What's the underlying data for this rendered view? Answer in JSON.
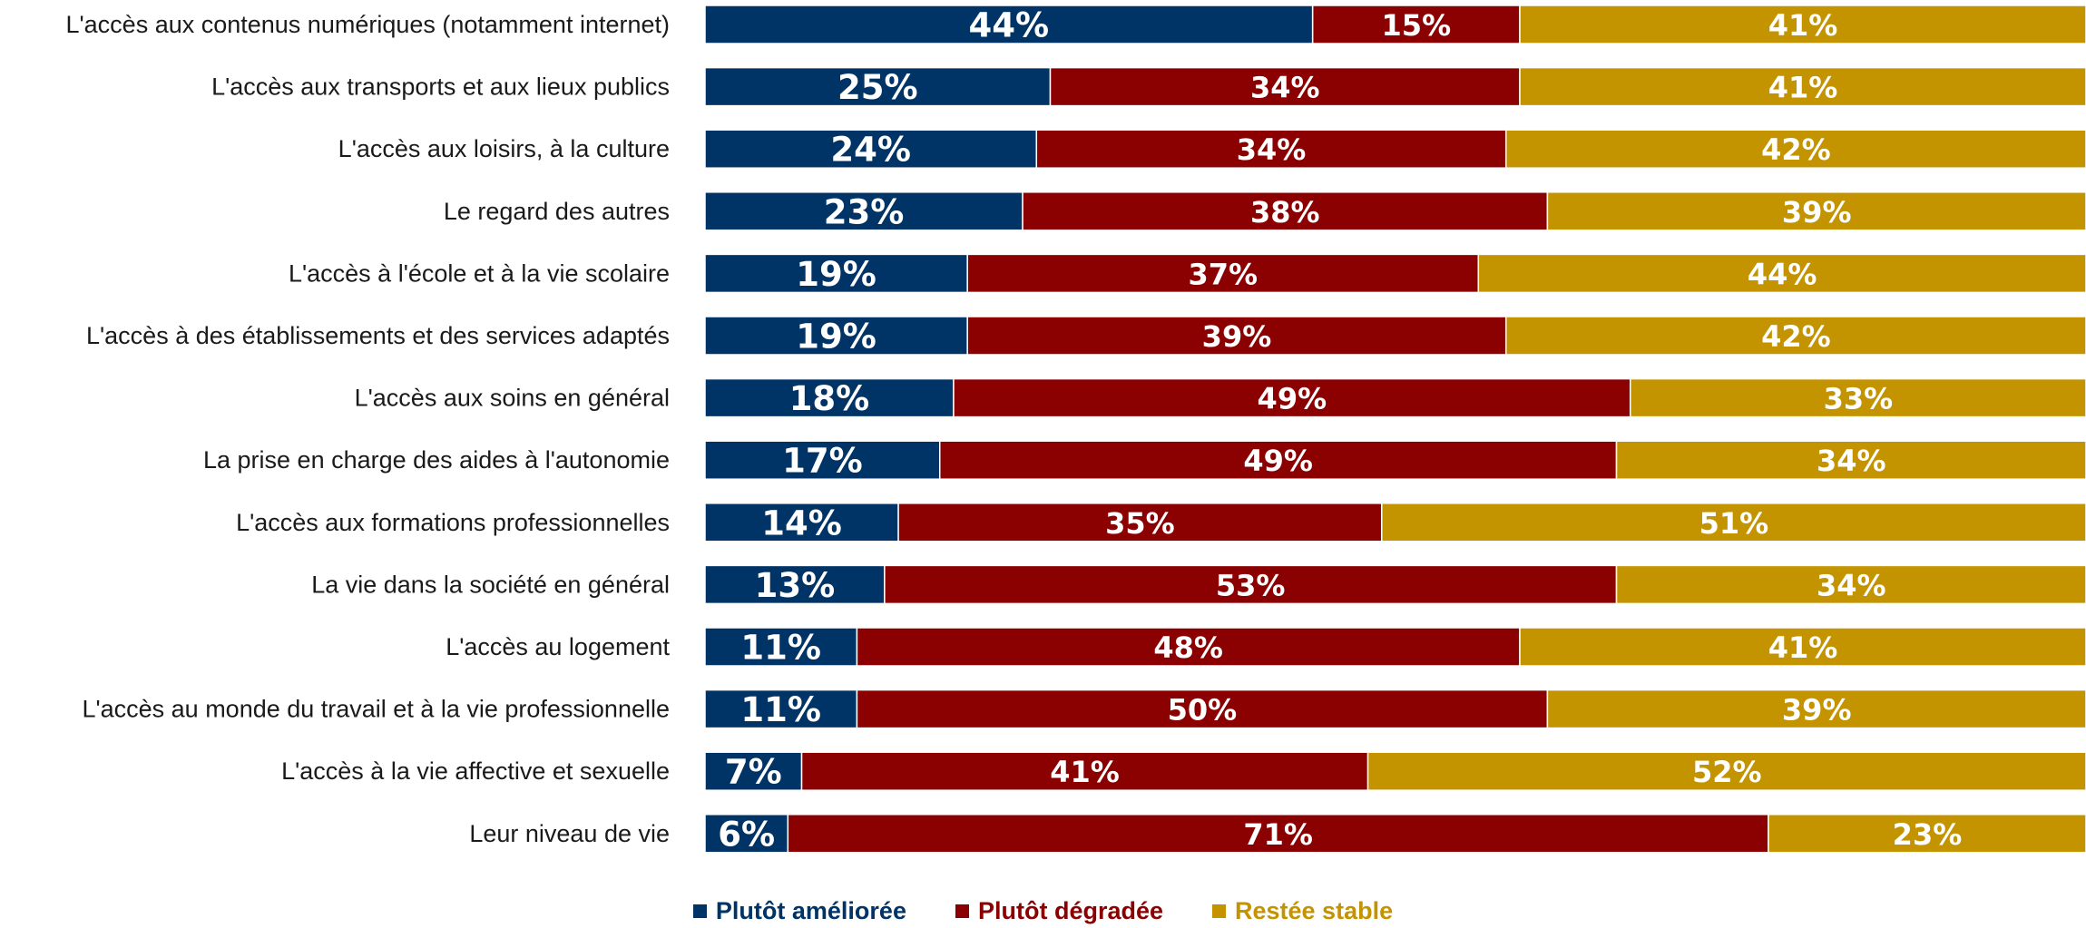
{
  "chart_data": {
    "type": "bar",
    "orientation": "horizontal",
    "stacked": true,
    "title": "",
    "xlabel": "",
    "ylabel": "",
    "xlim": [
      0,
      100
    ],
    "unit": "%",
    "grid": false,
    "legend_position": "bottom-center",
    "categories": [
      "L'accès aux contenus numériques (notamment internet)",
      "L'accès aux transports et aux lieux publics",
      "L'accès aux loisirs, à la culture",
      "Le regard des autres",
      "L'accès à l'école et à la vie scolaire",
      "L'accès à des établissements et des services adaptés",
      "L'accès aux soins en général",
      "La prise en charge des aides à l'autonomie",
      "L'accès aux formations professionnelles",
      "La vie dans la société en général",
      "L'accès au logement",
      "L'accès au monde du travail et à la vie professionnelle",
      "L'accès à la vie affective et sexuelle",
      "Leur niveau de vie"
    ],
    "series": [
      {
        "name": "Plutôt améliorée",
        "color": "#003366",
        "values": [
          44,
          25,
          24,
          23,
          19,
          19,
          18,
          17,
          14,
          13,
          11,
          11,
          7,
          6
        ]
      },
      {
        "name": "Plutôt dégradée",
        "color": "#8B0000",
        "values": [
          15,
          34,
          34,
          38,
          37,
          39,
          49,
          49,
          35,
          53,
          48,
          50,
          41,
          71
        ]
      },
      {
        "name": "Restée stable",
        "color": "#C49400",
        "values": [
          41,
          41,
          42,
          39,
          44,
          42,
          33,
          34,
          51,
          34,
          41,
          39,
          52,
          23
        ]
      }
    ]
  },
  "legend": {
    "items": [
      {
        "label": "Plutôt améliorée",
        "color": "#003366"
      },
      {
        "label": "Plutôt dégradée",
        "color": "#8B0000"
      },
      {
        "label": "Restée stable",
        "color": "#C49400"
      }
    ]
  }
}
